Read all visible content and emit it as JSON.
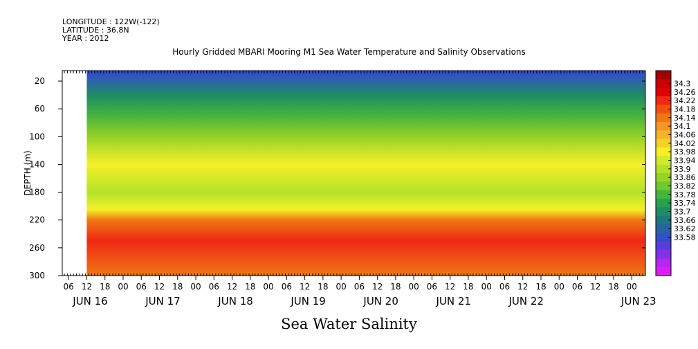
{
  "header": {
    "longitude": "LONGITUDE : 122W(-122)",
    "latitude": "LATITUDE : 36.8N",
    "year": "YEAR : 2012",
    "title": "Hourly Gridded MBARI Mooring M1 Sea Water Temperature and Salinity Observations"
  },
  "footer": {
    "label": "Sea Water Salinity"
  },
  "chart_data": {
    "type": "heatmap",
    "title": "Hourly Gridded MBARI Mooring M1 Sea Water Temperature and Salinity Observations",
    "variable": "Sea Water Salinity",
    "ylabel": "DEPTH (m)",
    "ylim": [
      300,
      5
    ],
    "y_ticks": [
      20,
      60,
      100,
      140,
      180,
      220,
      260,
      300
    ],
    "x_hour_ticks": [
      "06",
      "12",
      "18",
      "00",
      "06",
      "12",
      "18",
      "00",
      "06",
      "12",
      "18",
      "00",
      "06",
      "12",
      "18",
      "00",
      "06",
      "12",
      "18",
      "00",
      "06",
      "12",
      "18",
      "00",
      "06",
      "12",
      "18",
      "00",
      "06",
      "12",
      "18",
      "00"
    ],
    "x_day_labels": [
      "JUN 16",
      "JUN 17",
      "JUN 18",
      "JUN 19",
      "JUN 20",
      "JUN 21",
      "JUN 22",
      "JUN 23"
    ],
    "colorbar": {
      "levels": [
        "34.3",
        "34.26",
        "34.22",
        "34.18",
        "34.14",
        "34.1",
        "34.06",
        "34.02",
        "33.98",
        "33.94",
        "33.9",
        "33.86",
        "33.82",
        "33.78",
        "33.74",
        "33.7",
        "33.66",
        "33.62",
        "33.58"
      ],
      "colors": [
        "#a00000",
        "#c80000",
        "#e10000",
        "#f02814",
        "#f05014",
        "#f07814",
        "#f59628",
        "#f5b428",
        "#f5d228",
        "#f5f028",
        "#d2eb28",
        "#b4e128",
        "#96d228",
        "#6ec832",
        "#46b43c",
        "#28a050",
        "#1e8c64",
        "#1e787d",
        "#2864a0",
        "#3250c8",
        "#5a3cdc",
        "#8232e6",
        "#b428f0",
        "#dc1ef5"
      ]
    },
    "depth_profile": [
      {
        "depth": 10,
        "salinity": 33.72
      },
      {
        "depth": 40,
        "salinity": 33.8
      },
      {
        "depth": 70,
        "salinity": 33.86
      },
      {
        "depth": 100,
        "salinity": 33.92
      },
      {
        "depth": 140,
        "salinity": 34.02
      },
      {
        "depth": 180,
        "salinity": 33.96
      },
      {
        "depth": 205,
        "salinity": 34.02
      },
      {
        "depth": 220,
        "salinity": 34.14
      },
      {
        "depth": 250,
        "salinity": 34.22
      },
      {
        "depth": 300,
        "salinity": 34.14
      }
    ],
    "data_start": "JUN 16 12:00",
    "data_end": "JUN 23 06:00"
  }
}
